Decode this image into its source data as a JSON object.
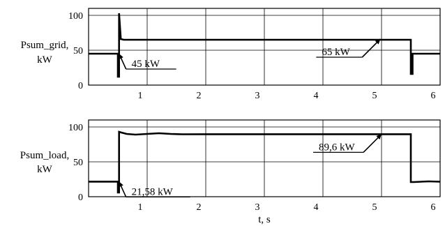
{
  "chart_data": [
    {
      "type": "line",
      "ylabel_lines": [
        "Psum_grid,",
        "kW"
      ],
      "xlabel": "",
      "xlim": [
        0,
        6
      ],
      "ylim": [
        0,
        110
      ],
      "x_ticks": [
        1,
        2,
        3,
        4,
        5,
        6
      ],
      "y_ticks": [
        0,
        50,
        100
      ],
      "grid": true,
      "series": [
        {
          "x": [
            0,
            0.5,
            0.5,
            0.52,
            0.52,
            0.55,
            0.6,
            5.5,
            5.5,
            5.53,
            5.53,
            5.56,
            6
          ],
          "y": [
            45,
            45,
            12,
            12,
            103,
            66,
            65,
            65,
            16,
            16,
            45,
            45,
            45
          ]
        }
      ],
      "annotations": [
        {
          "text": "45 kW",
          "value": 45,
          "arrow_to": [
            0.52,
            45
          ],
          "side": "right"
        },
        {
          "text": "65 kW",
          "value": 65,
          "arrow_to": [
            4.98,
            66
          ],
          "side": "left"
        }
      ]
    },
    {
      "type": "line",
      "ylabel_lines": [
        "Psum_load,",
        "kW"
      ],
      "xlabel": "t, s",
      "xlim": [
        0,
        6
      ],
      "ylim": [
        0,
        110
      ],
      "x_ticks": [
        1,
        2,
        3,
        4,
        5,
        6
      ],
      "y_ticks": [
        0,
        50,
        100
      ],
      "grid": true,
      "series": [
        {
          "x": [
            0,
            0.5,
            0.5,
            0.52,
            0.52,
            0.56,
            0.65,
            0.8,
            1.0,
            1.2,
            1.4,
            1.6,
            2.0,
            3.0,
            4.0,
            5.0,
            5.5,
            5.5,
            5.55,
            5.8,
            6
          ],
          "y": [
            21.6,
            21.6,
            6,
            6,
            93,
            92,
            90,
            89,
            90,
            91,
            90,
            89.5,
            89.6,
            89.6,
            89.6,
            89.6,
            89.6,
            21,
            21,
            22,
            21.5
          ]
        }
      ],
      "annotations": [
        {
          "text": "21,58 kW",
          "value": 21.58,
          "arrow_to": [
            0.52,
            21.58
          ],
          "side": "right"
        },
        {
          "text": "89,6 kW",
          "value": 89.6,
          "arrow_to": [
            5.0,
            89.6
          ],
          "side": "left"
        }
      ]
    }
  ]
}
